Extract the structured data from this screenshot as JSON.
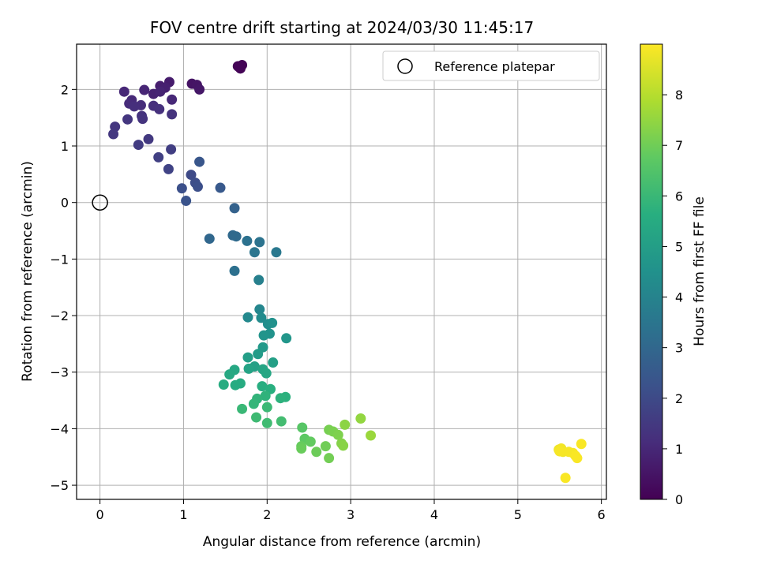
{
  "chart_data": {
    "type": "scatter",
    "title": "FOV centre drift starting at 2024/03/30 11:45:17",
    "xlabel": "Angular distance from reference (arcmin)",
    "ylabel": "Rotation from reference (arcmin)",
    "xlim": [
      -0.28,
      6.06
    ],
    "ylim": [
      -5.25,
      2.8
    ],
    "x_ticks": [
      0,
      1,
      2,
      3,
      4,
      5,
      6
    ],
    "y_ticks": [
      -5,
      -4,
      -3,
      -2,
      -1,
      0,
      1,
      2
    ],
    "grid": true,
    "legend": {
      "placement": "top-right",
      "entries": [
        {
          "label": "Reference platepar",
          "marker": "open-circle"
        }
      ]
    },
    "reference_point": {
      "x": 0,
      "y": 0
    },
    "colorbar": {
      "label": "Hours from first FF file",
      "range": [
        0,
        9
      ],
      "ticks": [
        0,
        1,
        2,
        3,
        4,
        5,
        6,
        7,
        8
      ],
      "colormap": "viridis"
    },
    "points": [
      {
        "x": 1.65,
        "y": 2.41,
        "c": 0.05
      },
      {
        "x": 1.7,
        "y": 2.43,
        "c": 0.06
      },
      {
        "x": 1.68,
        "y": 2.37,
        "c": 0.07
      },
      {
        "x": 1.66,
        "y": 2.4,
        "c": 0.08
      },
      {
        "x": 1.1,
        "y": 2.1,
        "c": 0.45
      },
      {
        "x": 1.16,
        "y": 2.08,
        "c": 0.5
      },
      {
        "x": 1.19,
        "y": 2.0,
        "c": 0.55
      },
      {
        "x": 0.83,
        "y": 2.13,
        "c": 0.7
      },
      {
        "x": 0.72,
        "y": 2.06,
        "c": 0.75
      },
      {
        "x": 0.78,
        "y": 2.03,
        "c": 0.8
      },
      {
        "x": 0.64,
        "y": 1.92,
        "c": 0.85
      },
      {
        "x": 0.72,
        "y": 1.96,
        "c": 0.9
      },
      {
        "x": 0.53,
        "y": 1.99,
        "c": 0.95
      },
      {
        "x": 0.29,
        "y": 1.96,
        "c": 1.0
      },
      {
        "x": 0.86,
        "y": 1.82,
        "c": 1.0
      },
      {
        "x": 0.38,
        "y": 1.81,
        "c": 1.05
      },
      {
        "x": 0.35,
        "y": 1.75,
        "c": 1.1
      },
      {
        "x": 0.49,
        "y": 1.72,
        "c": 1.15
      },
      {
        "x": 0.41,
        "y": 1.7,
        "c": 1.2
      },
      {
        "x": 0.64,
        "y": 1.71,
        "c": 1.2
      },
      {
        "x": 0.71,
        "y": 1.65,
        "c": 1.25
      },
      {
        "x": 0.86,
        "y": 1.56,
        "c": 1.3
      },
      {
        "x": 0.5,
        "y": 1.53,
        "c": 1.3
      },
      {
        "x": 0.51,
        "y": 1.48,
        "c": 1.35
      },
      {
        "x": 0.33,
        "y": 1.47,
        "c": 1.4
      },
      {
        "x": 0.18,
        "y": 1.34,
        "c": 1.4
      },
      {
        "x": 0.16,
        "y": 1.21,
        "c": 1.45
      },
      {
        "x": 0.58,
        "y": 1.12,
        "c": 1.5
      },
      {
        "x": 0.46,
        "y": 1.02,
        "c": 1.55
      },
      {
        "x": 0.85,
        "y": 0.94,
        "c": 1.65
      },
      {
        "x": 0.7,
        "y": 0.8,
        "c": 1.7
      },
      {
        "x": 0.82,
        "y": 0.59,
        "c": 1.8
      },
      {
        "x": 1.09,
        "y": 0.49,
        "c": 2.0
      },
      {
        "x": 1.14,
        "y": 0.35,
        "c": 2.1
      },
      {
        "x": 1.17,
        "y": 0.28,
        "c": 2.15
      },
      {
        "x": 0.98,
        "y": 0.25,
        "c": 2.2
      },
      {
        "x": 1.03,
        "y": 0.03,
        "c": 2.3
      },
      {
        "x": 1.19,
        "y": 0.72,
        "c": 2.4
      },
      {
        "x": 1.44,
        "y": 0.26,
        "c": 2.5
      },
      {
        "x": 1.61,
        "y": -0.1,
        "c": 2.8
      },
      {
        "x": 1.31,
        "y": -0.64,
        "c": 3.0
      },
      {
        "x": 1.59,
        "y": -0.58,
        "c": 3.05
      },
      {
        "x": 1.63,
        "y": -0.6,
        "c": 3.1
      },
      {
        "x": 1.61,
        "y": -1.21,
        "c": 3.3
      },
      {
        "x": 1.76,
        "y": -0.68,
        "c": 3.35
      },
      {
        "x": 1.91,
        "y": -0.7,
        "c": 3.4
      },
      {
        "x": 1.85,
        "y": -0.88,
        "c": 3.5
      },
      {
        "x": 2.11,
        "y": -0.88,
        "c": 3.6
      },
      {
        "x": 1.9,
        "y": -1.37,
        "c": 3.9
      },
      {
        "x": 1.91,
        "y": -1.89,
        "c": 4.1
      },
      {
        "x": 1.77,
        "y": -2.03,
        "c": 4.2
      },
      {
        "x": 1.93,
        "y": -2.04,
        "c": 4.3
      },
      {
        "x": 2.01,
        "y": -2.15,
        "c": 4.4
      },
      {
        "x": 2.06,
        "y": -2.13,
        "c": 4.5
      },
      {
        "x": 2.03,
        "y": -2.32,
        "c": 4.55
      },
      {
        "x": 1.96,
        "y": -2.35,
        "c": 4.6
      },
      {
        "x": 2.23,
        "y": -2.4,
        "c": 4.7
      },
      {
        "x": 1.95,
        "y": -2.56,
        "c": 4.8
      },
      {
        "x": 1.89,
        "y": -2.68,
        "c": 4.9
      },
      {
        "x": 1.77,
        "y": -2.74,
        "c": 5.0
      },
      {
        "x": 2.07,
        "y": -2.83,
        "c": 5.05
      },
      {
        "x": 1.85,
        "y": -2.9,
        "c": 5.1
      },
      {
        "x": 1.78,
        "y": -2.94,
        "c": 5.2
      },
      {
        "x": 1.95,
        "y": -2.95,
        "c": 5.25
      },
      {
        "x": 1.99,
        "y": -3.02,
        "c": 5.3
      },
      {
        "x": 1.61,
        "y": -2.96,
        "c": 5.35
      },
      {
        "x": 1.55,
        "y": -3.04,
        "c": 5.4
      },
      {
        "x": 1.68,
        "y": -3.2,
        "c": 5.5
      },
      {
        "x": 1.62,
        "y": -3.23,
        "c": 5.5
      },
      {
        "x": 1.48,
        "y": -3.22,
        "c": 5.55
      },
      {
        "x": 1.94,
        "y": -3.25,
        "c": 5.6
      },
      {
        "x": 2.04,
        "y": -3.3,
        "c": 5.65
      },
      {
        "x": 2.22,
        "y": -3.44,
        "c": 5.7
      },
      {
        "x": 2.16,
        "y": -3.46,
        "c": 5.75
      },
      {
        "x": 1.98,
        "y": -3.42,
        "c": 5.8
      },
      {
        "x": 1.88,
        "y": -3.47,
        "c": 5.85
      },
      {
        "x": 1.84,
        "y": -3.56,
        "c": 5.9
      },
      {
        "x": 1.7,
        "y": -3.65,
        "c": 6.0
      },
      {
        "x": 2.0,
        "y": -3.62,
        "c": 6.05
      },
      {
        "x": 1.87,
        "y": -3.8,
        "c": 6.1
      },
      {
        "x": 2.0,
        "y": -3.9,
        "c": 6.15
      },
      {
        "x": 2.17,
        "y": -3.87,
        "c": 6.2
      },
      {
        "x": 2.42,
        "y": -3.98,
        "c": 6.6
      },
      {
        "x": 2.45,
        "y": -4.18,
        "c": 6.7
      },
      {
        "x": 2.52,
        "y": -4.23,
        "c": 6.8
      },
      {
        "x": 2.41,
        "y": -4.31,
        "c": 6.85
      },
      {
        "x": 2.41,
        "y": -4.35,
        "c": 6.9
      },
      {
        "x": 2.59,
        "y": -4.41,
        "c": 6.95
      },
      {
        "x": 2.7,
        "y": -4.31,
        "c": 7.0
      },
      {
        "x": 2.74,
        "y": -4.52,
        "c": 7.05
      },
      {
        "x": 2.74,
        "y": -4.02,
        "c": 7.1
      },
      {
        "x": 2.79,
        "y": -4.05,
        "c": 7.15
      },
      {
        "x": 2.85,
        "y": -4.11,
        "c": 7.2
      },
      {
        "x": 2.89,
        "y": -4.26,
        "c": 7.3
      },
      {
        "x": 2.91,
        "y": -4.3,
        "c": 7.35
      },
      {
        "x": 2.93,
        "y": -3.93,
        "c": 7.4
      },
      {
        "x": 3.12,
        "y": -3.82,
        "c": 7.5
      },
      {
        "x": 3.24,
        "y": -4.12,
        "c": 7.6
      },
      {
        "x": 5.49,
        "y": -4.37,
        "c": 8.8
      },
      {
        "x": 5.52,
        "y": -4.35,
        "c": 8.85
      },
      {
        "x": 5.54,
        "y": -4.41,
        "c": 8.85
      },
      {
        "x": 5.61,
        "y": -4.41,
        "c": 8.9
      },
      {
        "x": 5.66,
        "y": -4.43,
        "c": 8.9
      },
      {
        "x": 5.69,
        "y": -4.48,
        "c": 8.95
      },
      {
        "x": 5.71,
        "y": -4.52,
        "c": 8.95
      },
      {
        "x": 5.76,
        "y": -4.27,
        "c": 8.95
      },
      {
        "x": 5.57,
        "y": -4.87,
        "c": 8.95
      },
      {
        "x": 5.5,
        "y": -4.4,
        "c": 8.9
      }
    ]
  }
}
